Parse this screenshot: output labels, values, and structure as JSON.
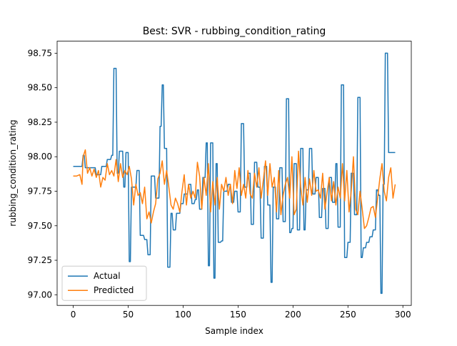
{
  "chart_data": {
    "type": "line",
    "title": "Best: SVR - rubbing_condition_rating",
    "x_label": "Sample index",
    "y_label": "rubbing_condition_rating",
    "xlim": [
      -14.65,
      307.65
    ],
    "xticks": [
      0,
      50,
      100,
      150,
      200,
      250,
      300
    ],
    "ylim": [
      96.923,
      98.837
    ],
    "yticks": [
      {
        "value": 97,
        "label": "97.00"
      },
      97.25,
      {
        "value": 97.5,
        "label": "97.50"
      },
      97.75,
      {
        "value": 98,
        "label": "98.00"
      },
      98.25,
      {
        "value": 98.5,
        "label": "98.50"
      },
      98.75
    ],
    "legend": "lower left",
    "series": [
      {
        "name": "Actual",
        "color": "#1f77b4",
        "x": [
          0,
          8,
          9,
          10,
          11,
          20,
          21,
          25,
          26,
          30,
          31,
          34,
          35,
          36,
          37,
          39,
          40,
          41,
          42,
          45,
          46,
          47,
          48,
          50,
          51,
          52,
          53,
          57,
          58,
          60,
          61,
          64,
          65,
          67,
          68,
          70,
          71,
          74,
          75,
          78,
          79,
          80,
          81,
          82,
          83,
          85,
          86,
          88,
          89,
          90,
          91,
          93,
          94,
          97,
          98,
          100,
          101,
          104,
          105,
          107,
          108,
          110,
          111,
          112,
          113,
          114,
          115,
          117,
          118,
          120,
          121,
          122,
          123,
          124,
          125,
          127,
          128,
          129,
          130,
          131,
          132,
          134,
          135,
          136,
          137,
          140,
          141,
          143,
          144,
          146,
          147,
          149,
          150,
          152,
          153,
          155,
          156,
          158,
          159,
          161,
          162,
          164,
          165,
          167,
          168,
          170,
          171,
          173,
          174,
          176,
          177,
          179,
          180,
          181,
          182,
          184,
          185,
          187,
          188,
          190,
          191,
          193,
          194,
          196,
          197,
          198,
          199,
          200,
          201,
          203,
          204,
          206,
          207,
          209,
          210,
          211,
          212,
          214,
          215,
          217,
          218,
          220,
          221,
          223,
          224,
          226,
          227,
          229,
          230,
          232,
          233,
          235,
          236,
          238,
          239,
          240,
          241,
          243,
          244,
          246,
          247,
          249,
          250,
          252,
          253,
          255,
          256,
          258,
          259,
          261,
          262,
          263,
          264,
          266,
          267,
          269,
          270,
          272,
          273,
          275,
          276,
          277,
          278,
          279,
          280,
          281,
          282,
          283,
          284,
          286,
          287,
          293
        ],
        "values": [
          97.93,
          97.93,
          98.01,
          98.01,
          97.92,
          97.92,
          97.87,
          97.87,
          97.93,
          97.93,
          97.98,
          97.98,
          98.01,
          98.01,
          98.64,
          98.64,
          97.88,
          97.88,
          98.04,
          98.04,
          97.78,
          97.78,
          98.03,
          98.03,
          97.24,
          97.24,
          97.78,
          97.78,
          97.9,
          97.9,
          97.43,
          97.43,
          97.4,
          97.4,
          97.29,
          97.29,
          97.86,
          97.86,
          97.7,
          97.7,
          98.22,
          98.22,
          98.52,
          98.52,
          98.06,
          98.06,
          97.2,
          97.2,
          97.59,
          97.59,
          97.47,
          97.47,
          97.59,
          97.59,
          97.66,
          97.66,
          97.73,
          97.73,
          97.8,
          97.8,
          97.66,
          97.66,
          97.69,
          97.69,
          97.76,
          97.76,
          97.62,
          97.62,
          97.85,
          97.85,
          98.1,
          98.1,
          97.21,
          97.21,
          98.1,
          98.1,
          97.12,
          97.12,
          97.95,
          97.95,
          97.38,
          97.38,
          97.39,
          97.39,
          97.75,
          97.75,
          97.8,
          97.8,
          97.67,
          97.67,
          97.75,
          97.75,
          97.6,
          97.6,
          98.24,
          98.24,
          97.78,
          97.78,
          97.88,
          97.88,
          97.51,
          97.51,
          97.96,
          97.96,
          97.78,
          97.78,
          97.41,
          97.41,
          97.93,
          97.93,
          97.65,
          97.65,
          97.09,
          97.09,
          97.78,
          97.78,
          97.55,
          97.55,
          97.92,
          97.92,
          97.53,
          97.53,
          98.42,
          98.42,
          97.45,
          97.45,
          97.48,
          97.48,
          97.95,
          97.95,
          97.47,
          97.47,
          98.06,
          98.06,
          97.47,
          97.47,
          97.76,
          97.76,
          98.06,
          98.06,
          97.73,
          97.73,
          97.85,
          97.85,
          97.56,
          97.56,
          97.77,
          97.77,
          97.48,
          97.48,
          97.85,
          97.85,
          97.67,
          97.67,
          97.95,
          97.95,
          97.49,
          97.49,
          98.52,
          98.52,
          97.27,
          97.27,
          97.38,
          97.38,
          97.88,
          97.88,
          97.58,
          97.58,
          98.43,
          98.43,
          97.27,
          97.27,
          97.34,
          97.34,
          97.38,
          97.38,
          97.42,
          97.42,
          97.47,
          97.47,
          97.76,
          97.76,
          97.72,
          97.72,
          97.01,
          97.01,
          97.8,
          97.8,
          98.75,
          98.75,
          98.03,
          98.03
        ]
      },
      {
        "name": "Predicted",
        "color": "#ff7f0e",
        "x": [
          0,
          3,
          6,
          8,
          9,
          11,
          13,
          15,
          17,
          19,
          21,
          23,
          25,
          27,
          29,
          31,
          33,
          35,
          37,
          39,
          41,
          43,
          45,
          47,
          49,
          51,
          53,
          55,
          57,
          59,
          61,
          63,
          65,
          67,
          69,
          71,
          73,
          75,
          77,
          79,
          81,
          83,
          85,
          87,
          89,
          91,
          93,
          95,
          97,
          99,
          101,
          103,
          105,
          107,
          109,
          111,
          113,
          115,
          117,
          119,
          121,
          123,
          125,
          127,
          129,
          131,
          133,
          135,
          137,
          139,
          141,
          143,
          145,
          147,
          149,
          151,
          153,
          155,
          157,
          159,
          161,
          163,
          165,
          167,
          169,
          171,
          173,
          175,
          177,
          179,
          181,
          183,
          185,
          187,
          189,
          191,
          193,
          195,
          197,
          199,
          201,
          203,
          205,
          207,
          209,
          211,
          213,
          215,
          217,
          219,
          221,
          223,
          225,
          227,
          229,
          231,
          233,
          235,
          237,
          239,
          241,
          243,
          245,
          247,
          249,
          251,
          253,
          255,
          257,
          259,
          261,
          263,
          265,
          267,
          269,
          271,
          273,
          275,
          277,
          279,
          281,
          283,
          285,
          287,
          289,
          291,
          293
        ],
        "values": [
          97.86,
          97.86,
          97.87,
          97.8,
          98.0,
          98.05,
          97.88,
          97.92,
          97.86,
          97.91,
          97.85,
          97.9,
          97.78,
          97.85,
          97.83,
          97.95,
          97.87,
          97.9,
          97.86,
          97.98,
          97.82,
          97.95,
          97.85,
          97.9,
          97.87,
          97.93,
          97.84,
          97.65,
          97.8,
          97.72,
          97.74,
          97.66,
          97.78,
          97.55,
          97.6,
          97.52,
          97.6,
          97.66,
          97.84,
          97.88,
          97.97,
          97.8,
          97.9,
          97.78,
          97.65,
          97.62,
          97.7,
          97.66,
          97.6,
          97.75,
          97.87,
          97.65,
          97.8,
          97.7,
          97.75,
          97.7,
          97.96,
          97.86,
          97.62,
          97.85,
          97.72,
          97.95,
          97.6,
          97.82,
          97.65,
          97.85,
          97.62,
          97.8,
          97.75,
          97.85,
          97.72,
          97.8,
          97.66,
          97.9,
          97.77,
          97.92,
          97.72,
          97.8,
          97.7,
          97.9,
          97.73,
          97.7,
          97.88,
          97.78,
          97.92,
          97.7,
          97.83,
          97.97,
          97.72,
          97.95,
          97.78,
          97.85,
          97.6,
          97.9,
          97.58,
          97.72,
          97.8,
          97.85,
          97.7,
          98.0,
          97.58,
          97.62,
          98.04,
          97.78,
          97.65,
          97.85,
          97.67,
          97.84,
          97.72,
          97.9,
          97.75,
          97.76,
          97.7,
          97.88,
          97.62,
          97.74,
          97.85,
          97.68,
          97.82,
          97.65,
          97.78,
          97.7,
          97.95,
          97.68,
          97.9,
          97.6,
          97.75,
          98.0,
          97.62,
          97.58,
          97.75,
          97.62,
          97.48,
          97.5,
          97.56,
          97.63,
          97.64,
          97.56,
          97.7,
          97.84,
          97.95,
          97.75,
          97.68,
          97.85,
          97.92,
          97.7,
          97.8
        ]
      }
    ]
  }
}
